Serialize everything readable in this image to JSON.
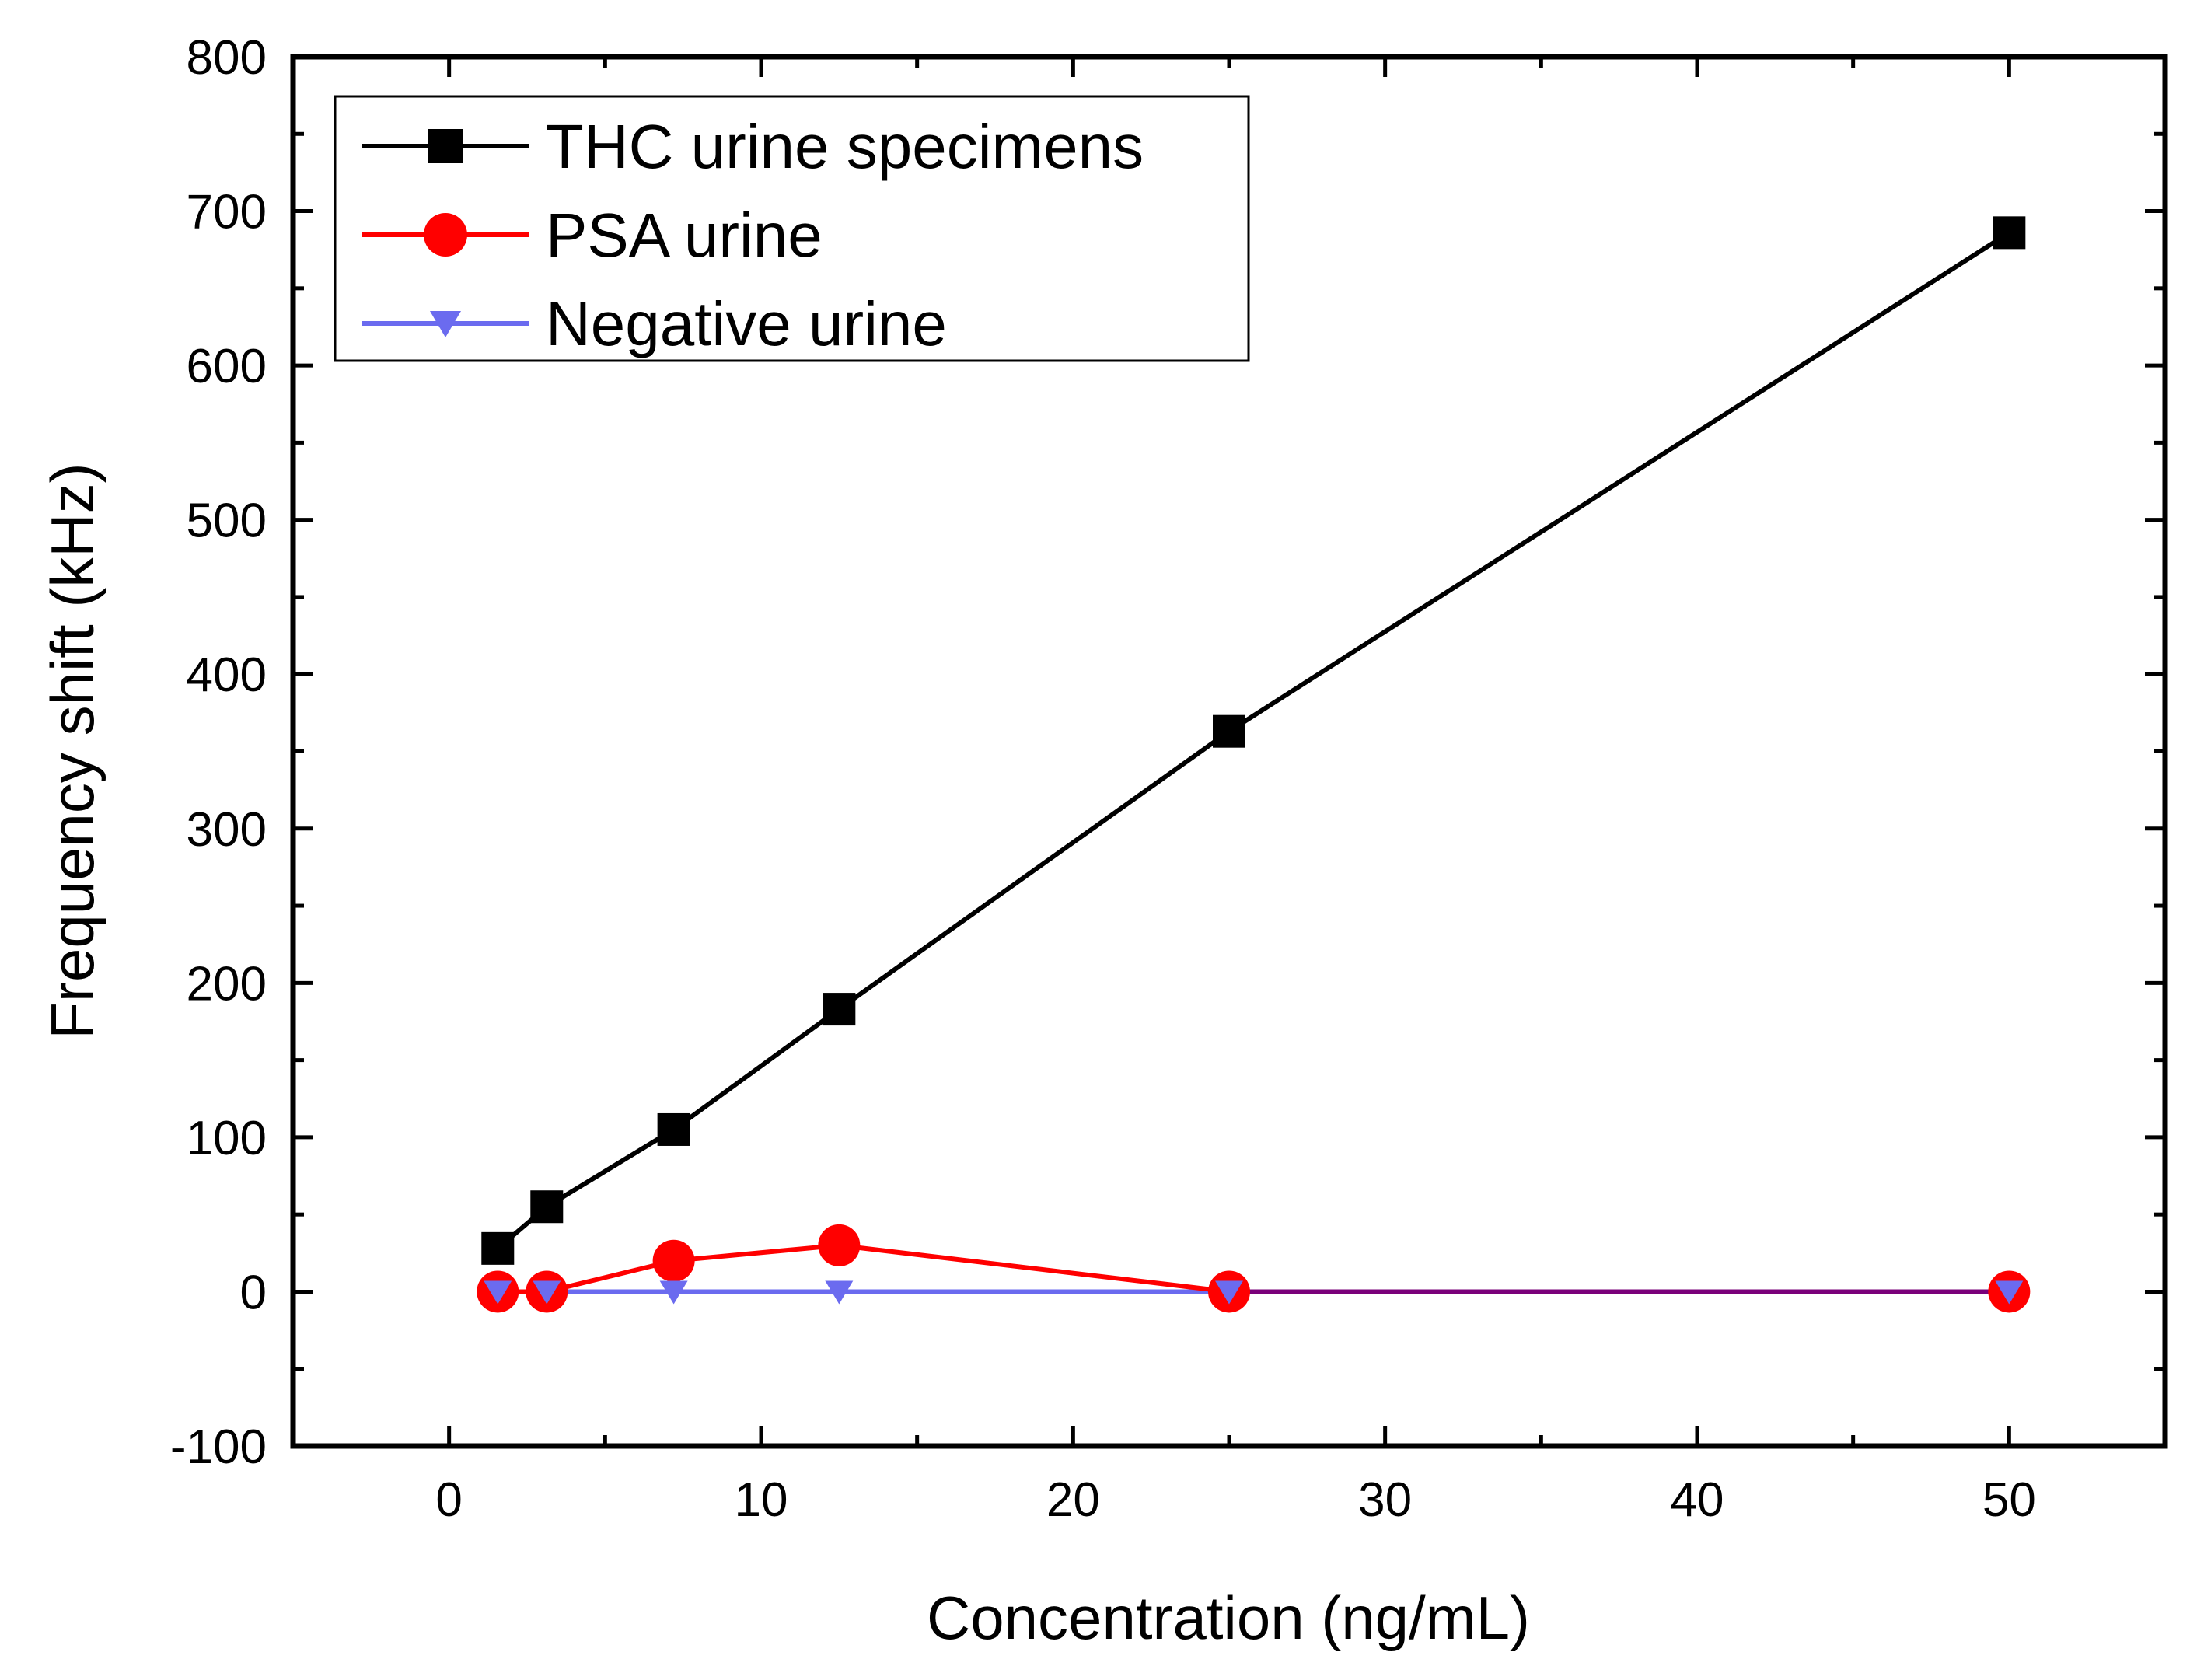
{
  "chart_data": {
    "type": "line",
    "title": "",
    "xlabel": "Concentration (ng/mL)",
    "ylabel": "Frequency shift (kHz)",
    "xlim": [
      -5,
      55
    ],
    "ylim": [
      -100,
      800
    ],
    "xticks": [
      0,
      10,
      20,
      30,
      40,
      50
    ],
    "yticks": [
      -100,
      0,
      100,
      200,
      300,
      400,
      500,
      600,
      700,
      800
    ],
    "grid": false,
    "legend_position": "top-left",
    "series": [
      {
        "name": "THC urine specimens",
        "color": "#000000",
        "marker": "square",
        "x": [
          1.56,
          3.13,
          7.2,
          12.5,
          25,
          50
        ],
        "y": [
          28,
          55,
          105,
          183,
          363,
          686
        ]
      },
      {
        "name": "PSA urine",
        "color": "#ff0000",
        "marker": "circle",
        "x": [
          1.56,
          3.13,
          7.2,
          12.5,
          25,
          50
        ],
        "y": [
          0,
          0,
          20,
          30,
          0,
          0
        ]
      },
      {
        "name": "Negative urine",
        "color": "#6b6bef",
        "marker": "triangle-down",
        "x": [
          1.56,
          3.13,
          7.2,
          12.5,
          25,
          50
        ],
        "y": [
          0,
          0,
          0,
          0,
          0,
          0
        ]
      }
    ],
    "overlap_line_color": "#7a007a"
  }
}
